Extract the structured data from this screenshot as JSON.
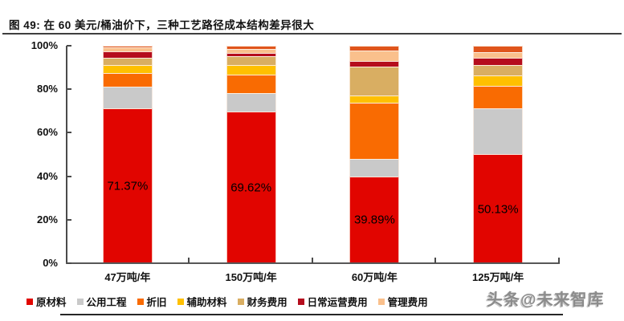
{
  "figure": {
    "title": "图 49: 在 60 美元/桶油价下，三种工艺路径成本结构差异很大",
    "watermark": "头条@未来智库"
  },
  "chart_data": {
    "type": "bar",
    "subtype": "100%-stacked-column",
    "title": "图 49: 在 60 美元/桶油价下，三种工艺路径成本结构差异很大",
    "categories": [
      "47万吨/年",
      "150万吨/年",
      "60万吨/年",
      "125万吨/年"
    ],
    "unit": "%",
    "ylim": [
      0,
      100
    ],
    "grid": false,
    "legend_position": "bottom",
    "y_ticks": [
      {
        "label": "100%",
        "value": 100
      },
      {
        "label": "80%",
        "value": 80
      },
      {
        "label": "60%",
        "value": 60
      },
      {
        "label": "40%",
        "value": 40
      },
      {
        "label": "20%",
        "value": 20
      },
      {
        "label": "0%",
        "value": 0
      }
    ],
    "bar_labels": [
      "71.37%",
      "69.62%",
      "39.89%",
      "50.13%"
    ],
    "series": [
      {
        "name": "原材料",
        "color": "#e10500",
        "legend_visible": true,
        "values": [
          71.37,
          69.62,
          39.89,
          50.13
        ]
      },
      {
        "name": "公用工程",
        "color": "#c9c9c9",
        "legend_visible": true,
        "values": [
          10.0,
          8.5,
          8.2,
          21.1
        ]
      },
      {
        "name": "折旧",
        "color": "#f96b02",
        "legend_visible": true,
        "values": [
          6.2,
          8.7,
          25.9,
          10.2
        ]
      },
      {
        "name": "辅助材料",
        "color": "#ffc000",
        "legend_visible": true,
        "values": [
          3.7,
          4.4,
          3.3,
          5.0
        ]
      },
      {
        "name": "财务费用",
        "color": "#d9ae62",
        "legend_visible": true,
        "values": [
          3.1,
          4.1,
          13.3,
          4.6
        ]
      },
      {
        "name": "日常运营费用",
        "color": "#b50d1d",
        "legend_visible": true,
        "values": [
          2.9,
          1.3,
          2.3,
          3.6
        ]
      },
      {
        "name": "管理费用",
        "color": "#fac08c",
        "legend_visible": true,
        "values": [
          2.2,
          1.9,
          5.1,
          2.5
        ]
      },
      {
        "name": "",
        "color": "#e0551c",
        "legend_visible": false,
        "values": [
          0.53,
          1.5,
          2.0,
          2.87
        ]
      }
    ]
  },
  "colors": {
    "axis": "#4a4a4a",
    "text": "#111111",
    "watermark": "#8c8c8c"
  }
}
